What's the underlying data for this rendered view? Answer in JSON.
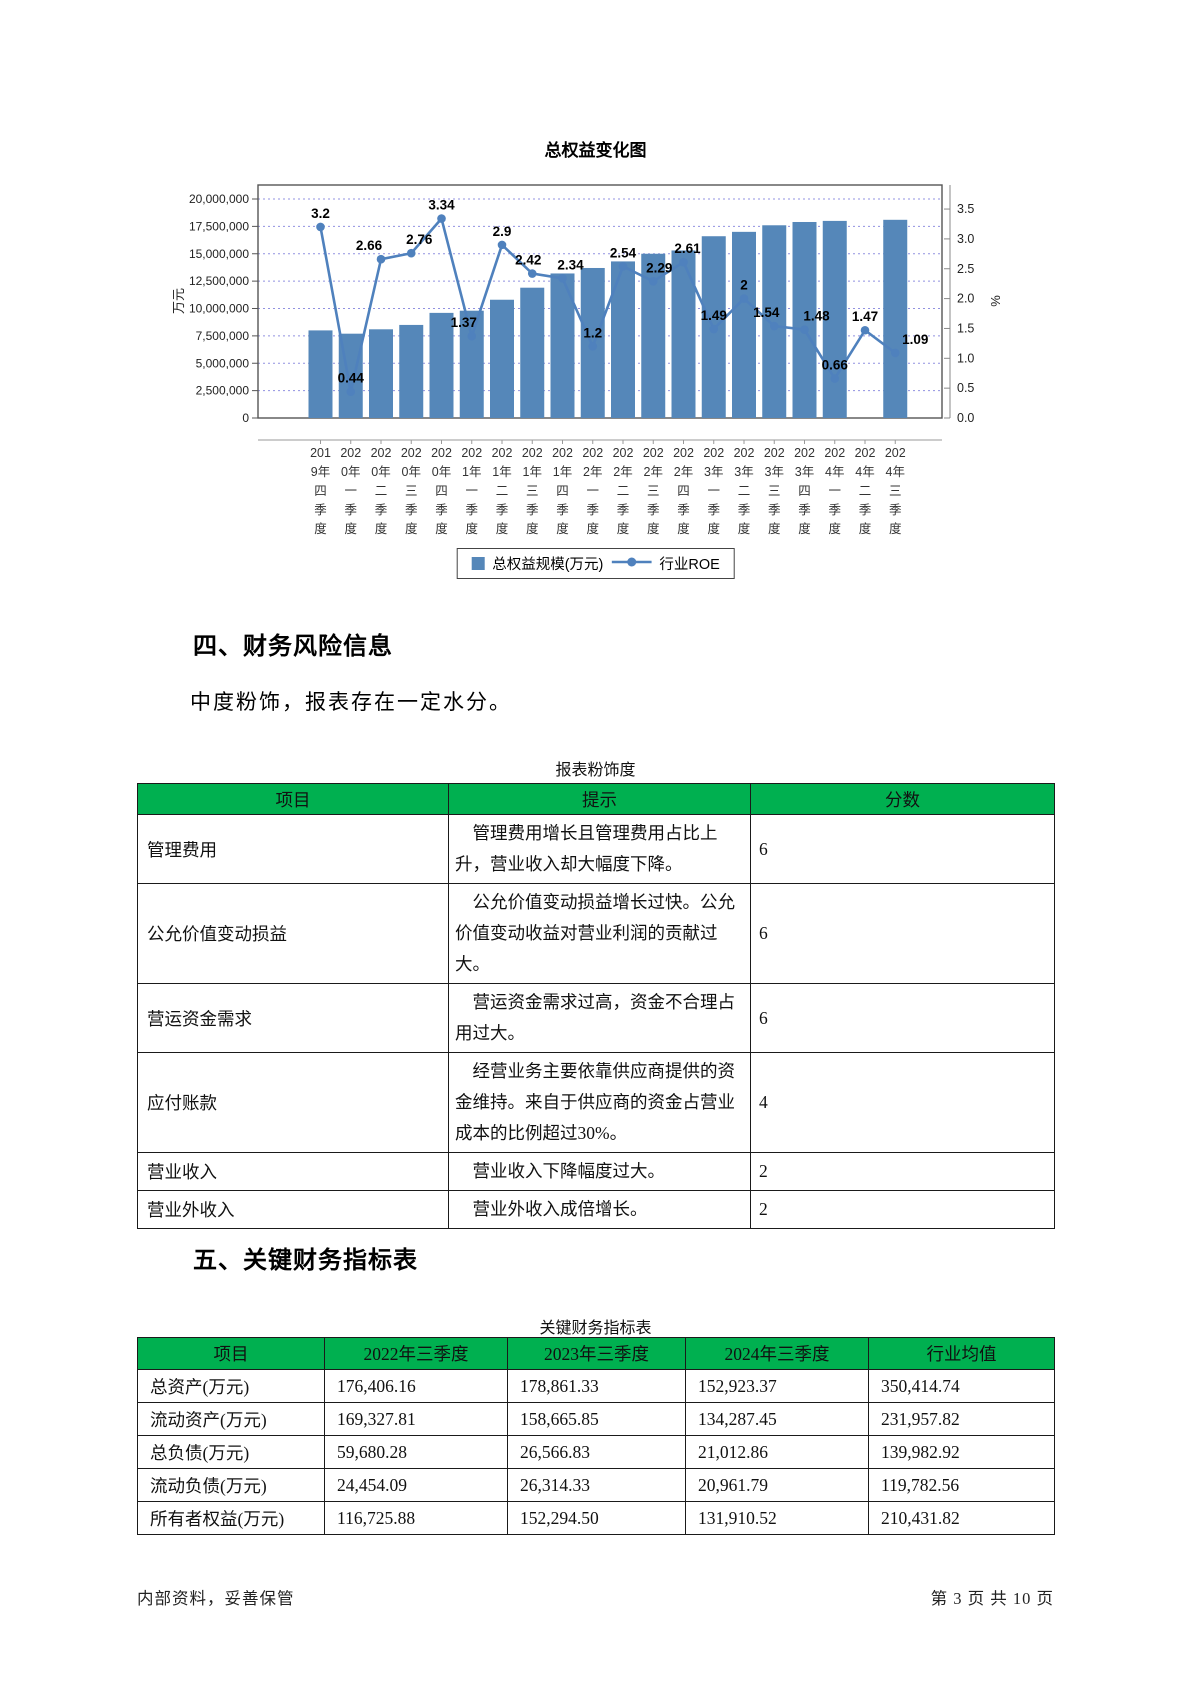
{
  "chart_data": {
    "type": "bar+line",
    "title": "总权益变化图",
    "grid": "dotted horizontal gridlines",
    "legend_position": "bottom",
    "left_axis": {
      "label": "万元",
      "min": 0,
      "max": 20000000,
      "step": 2500000
    },
    "right_axis": {
      "label": "%",
      "min": 0.0,
      "max": 3.5,
      "step": 0.5
    },
    "categories": [
      "2019年四季度",
      "2020年一季度",
      "2020年二季度",
      "2020年三季度",
      "2020年四季度",
      "2021年一季度",
      "2021年二季度",
      "2021年三季度",
      "2021年四季度",
      "2022年一季度",
      "2022年二季度",
      "2022年三季度",
      "2022年四季度",
      "2023年一季度",
      "2023年二季度",
      "2023年三季度",
      "2023年四季度",
      "2024年一季度",
      "2024年二季度",
      "2024年三季度"
    ],
    "series": [
      {
        "name": "总权益规模(万元)",
        "type": "bar",
        "values": [
          8000000,
          7700000,
          8100000,
          8500000,
          9600000,
          9800000,
          10800000,
          11900000,
          13200000,
          13700000,
          14300000,
          15000000,
          15300000,
          16600000,
          17000000,
          17600000,
          17900000,
          18000000,
          null,
          18100000
        ]
      },
      {
        "name": "行业ROE",
        "type": "line",
        "values": [
          3.2,
          0.44,
          2.66,
          2.76,
          3.34,
          1.37,
          2.9,
          2.42,
          2.34,
          1.2,
          2.54,
          2.29,
          2.61,
          1.49,
          2,
          1.54,
          1.48,
          0.66,
          1.47,
          1.09
        ]
      }
    ]
  },
  "colors": {
    "bar_blue": "#5587B9",
    "line_blue": "#4F81BD",
    "grid_blue": "#9191E0",
    "header_green": "#00B050",
    "axis_gray": "#555555"
  },
  "section4": {
    "heading": "四、财务风险信息",
    "paragraph": "中度粉饰，报表存在一定水分。"
  },
  "table1": {
    "title": "报表粉饰度",
    "headers": [
      "项目",
      "提示",
      "分数"
    ],
    "rows": [
      {
        "item": "管理费用",
        "hint": "管理费用增长且管理费用占比上升，营业收入却大幅度下降。",
        "score": "6"
      },
      {
        "item": "公允价值变动损益",
        "hint": "公允价值变动损益增长过快。公允价值变动收益对营业利润的贡献过大。",
        "score": "6"
      },
      {
        "item": "营运资金需求",
        "hint": "营运资金需求过高，资金不合理占用过大。",
        "score": "6"
      },
      {
        "item": "应付账款",
        "hint": "经营业务主要依靠供应商提供的资金维持。来自于供应商的资金占营业成本的比例超过30%。",
        "score": "4"
      },
      {
        "item": "营业收入",
        "hint": "营业收入下降幅度过大。",
        "score": "2"
      },
      {
        "item": "营业外收入",
        "hint": "营业外收入成倍增长。",
        "score": "2"
      }
    ]
  },
  "section5": {
    "heading": "五、关键财务指标表"
  },
  "table2": {
    "title": "关键财务指标表",
    "headers": [
      "项目",
      "2022年三季度",
      "2023年三季度",
      "2024年三季度",
      "行业均值"
    ],
    "rows": [
      [
        "总资产(万元)",
        "176,406.16",
        "178,861.33",
        "152,923.37",
        "350,414.74"
      ],
      [
        "流动资产(万元)",
        "169,327.81",
        "158,665.85",
        "134,287.45",
        "231,957.82"
      ],
      [
        "总负债(万元)",
        "59,680.28",
        "26,566.83",
        "21,012.86",
        "139,982.92"
      ],
      [
        "流动负债(万元)",
        "24,454.09",
        "26,314.33",
        "20,961.79",
        "119,782.56"
      ],
      [
        "所有者权益(万元)",
        "116,725.88",
        "152,294.50",
        "131,910.52",
        "210,431.82"
      ]
    ]
  },
  "footer": {
    "left": "内部资料，妥善保管",
    "right": "第 3 页  共 10 页"
  }
}
